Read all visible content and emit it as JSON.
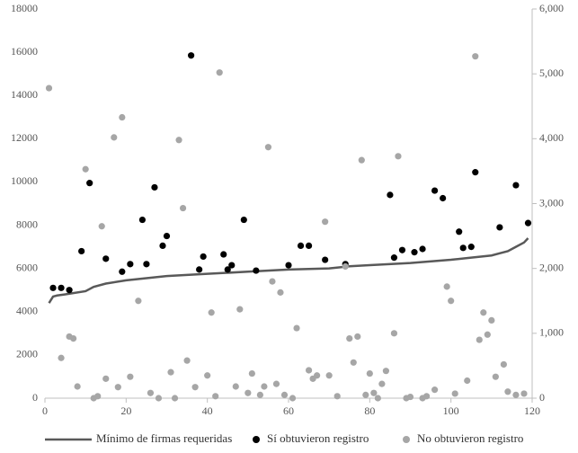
{
  "chart_data": {
    "type": "scatter",
    "xlim": [
      0,
      120
    ],
    "xticks": [
      0,
      20,
      40,
      60,
      80,
      100,
      120
    ],
    "ylim": [
      0,
      18000
    ],
    "yticks": [
      0,
      2000,
      4000,
      6000,
      8000,
      10000,
      12000,
      14000,
      16000,
      18000
    ],
    "y2lim": [
      0,
      6000
    ],
    "y2ticks": [
      {
        "value": 0,
        "label": "0"
      },
      {
        "value": 1000,
        "label": "1,000"
      },
      {
        "value": 2000,
        "label": "2,000"
      },
      {
        "value": 3000,
        "label": "3,000"
      },
      {
        "value": 4000,
        "label": "4,000"
      },
      {
        "value": 5000,
        "label": "5,000"
      },
      {
        "value": 6000,
        "label": "6,000"
      }
    ],
    "legend": "bottom",
    "series": [
      {
        "name": "Mínimo de firmas requeridas",
        "kind": "line",
        "color": "#595959",
        "x": [
          1,
          2,
          3,
          5,
          10,
          12,
          15,
          20,
          25,
          30,
          40,
          50,
          60,
          70,
          75,
          80,
          90,
          100,
          105,
          110,
          112,
          114,
          116,
          118,
          119
        ],
        "values": [
          4400,
          4700,
          4750,
          4800,
          4950,
          5150,
          5300,
          5450,
          5550,
          5650,
          5750,
          5850,
          5950,
          6000,
          6100,
          6150,
          6250,
          6400,
          6500,
          6600,
          6700,
          6800,
          7000,
          7200,
          7400
        ]
      },
      {
        "name": "Sí obtuvieron registro",
        "kind": "point",
        "color": "#000000",
        "x": [
          2,
          4,
          6,
          9,
          11,
          15,
          19,
          21,
          24,
          25,
          27,
          29,
          30,
          36,
          38,
          39,
          44,
          45,
          46,
          49,
          52,
          60,
          63,
          65,
          69,
          74,
          85,
          86,
          88,
          91,
          93,
          96,
          98,
          102,
          103,
          105,
          106,
          112,
          116,
          119
        ],
        "values": [
          5100,
          5100,
          5000,
          6800,
          9950,
          6450,
          5850,
          6200,
          8250,
          6200,
          9750,
          7050,
          7500,
          15850,
          5950,
          6550,
          6650,
          5950,
          6150,
          8250,
          5900,
          6150,
          7050,
          7050,
          6400,
          6200,
          9400,
          6500,
          6850,
          6750,
          6900,
          9600,
          9250,
          7700,
          6950,
          7000,
          10450,
          7900,
          9850,
          8100
        ]
      },
      {
        "name": "No obtuvieron registro",
        "kind": "point",
        "color": "#a6a6a6",
        "axis": "y2",
        "x": [
          1,
          4,
          6,
          7,
          8,
          10,
          12,
          13,
          14,
          15,
          17,
          18,
          19,
          21,
          23,
          26,
          28,
          31,
          32,
          33,
          34,
          35,
          37,
          40,
          41,
          42,
          43,
          47,
          48,
          50,
          51,
          53,
          54,
          55,
          56,
          57,
          58,
          59,
          61,
          62,
          65,
          66,
          67,
          69,
          70,
          72,
          74,
          75,
          76,
          77,
          78,
          79,
          80,
          81,
          82,
          83,
          84,
          86,
          87,
          89,
          90,
          93,
          94,
          96,
          99,
          100,
          101,
          104,
          106,
          107,
          108,
          109,
          110,
          111,
          113,
          114,
          116,
          118
        ],
        "values": [
          4780,
          620,
          950,
          920,
          180,
          3530,
          0,
          30,
          2650,
          300,
          4020,
          170,
          4330,
          330,
          1500,
          80,
          0,
          400,
          0,
          3980,
          2930,
          580,
          170,
          350,
          1320,
          30,
          5020,
          180,
          1370,
          80,
          380,
          50,
          180,
          3870,
          1800,
          220,
          1630,
          50,
          0,
          1080,
          430,
          300,
          350,
          2720,
          350,
          30,
          2030,
          920,
          550,
          950,
          3670,
          50,
          380,
          80,
          0,
          220,
          420,
          1000,
          3730,
          0,
          20,
          0,
          30,
          130,
          1720,
          1500,
          70,
          270,
          5270,
          900,
          1320,
          980,
          1200,
          330,
          520,
          100,
          50,
          70
        ]
      }
    ]
  }
}
